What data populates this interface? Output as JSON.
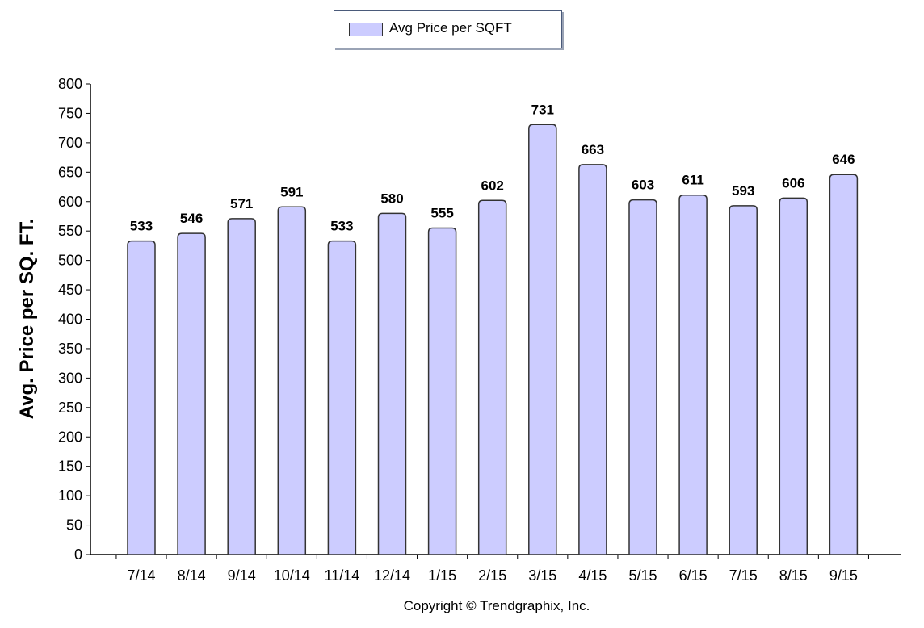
{
  "chart_data": {
    "type": "bar",
    "categories": [
      "7/14",
      "8/14",
      "9/14",
      "10/14",
      "11/14",
      "12/14",
      "1/15",
      "2/15",
      "3/15",
      "4/15",
      "5/15",
      "6/15",
      "7/15",
      "8/15",
      "9/15"
    ],
    "series": [
      {
        "name": "Avg Price per SQFT",
        "values": [
          533,
          546,
          571,
          591,
          533,
          580,
          555,
          602,
          731,
          663,
          603,
          611,
          593,
          606,
          646
        ]
      }
    ],
    "ylabel": "Avg. Price per SQ. FT.",
    "xlabel": "",
    "ylim": [
      0,
      800
    ],
    "yticks": [
      0,
      50,
      100,
      150,
      200,
      250,
      300,
      350,
      400,
      450,
      500,
      550,
      600,
      650,
      700,
      750,
      800
    ],
    "grid": false,
    "legend_position": "top-center",
    "data_labels": true
  },
  "colors": {
    "bar_fill": "#ccccff",
    "bar_stroke": "#333333"
  },
  "footer": {
    "copyright": "Copyright © Trendgraphix, Inc."
  }
}
